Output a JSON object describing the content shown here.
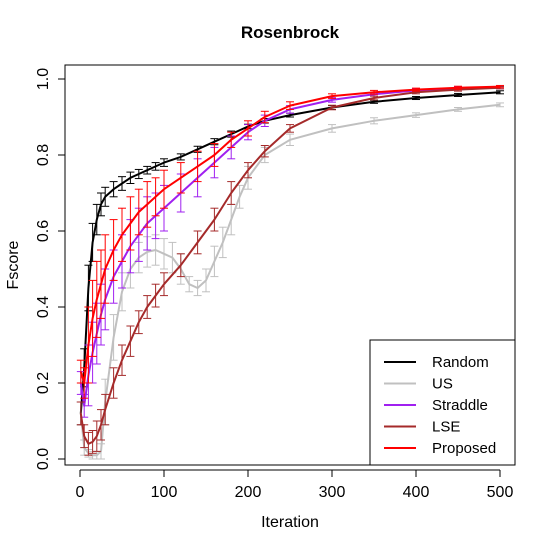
{
  "chart_data": {
    "type": "line",
    "title": "Rosenbrock",
    "xlabel": "Iteration",
    "ylabel": "Fscore",
    "xlim": [
      0,
      500
    ],
    "ylim": [
      0,
      1.0
    ],
    "xticks": [
      "0",
      "100",
      "200",
      "300",
      "400",
      "500"
    ],
    "yticks": [
      "0.0",
      "0.2",
      "0.4",
      "0.6",
      "0.8",
      "1.0"
    ],
    "legend_position": "bottom-right",
    "grid": false,
    "series": [
      {
        "name": "Random",
        "color": "#000000",
        "x": [
          1,
          5,
          10,
          15,
          20,
          25,
          30,
          40,
          50,
          60,
          70,
          80,
          90,
          100,
          120,
          140,
          160,
          180,
          200,
          220,
          250,
          300,
          350,
          400,
          450,
          500
        ],
        "y": [
          0.12,
          0.24,
          0.45,
          0.57,
          0.63,
          0.67,
          0.69,
          0.71,
          0.725,
          0.74,
          0.75,
          0.76,
          0.77,
          0.78,
          0.795,
          0.815,
          0.835,
          0.855,
          0.875,
          0.89,
          0.905,
          0.925,
          0.94,
          0.95,
          0.958,
          0.965
        ],
        "err": [
          0.03,
          0.05,
          0.06,
          0.05,
          0.04,
          0.03,
          0.025,
          0.02,
          0.018,
          0.015,
          0.012,
          0.01,
          0.01,
          0.01,
          0.008,
          0.008,
          0.008,
          0.008,
          0.006,
          0.006,
          0.005,
          0.005,
          0.004,
          0.004,
          0.004,
          0.004
        ]
      },
      {
        "name": "US",
        "color": "#c0c0c0",
        "x": [
          1,
          5,
          10,
          15,
          20,
          25,
          30,
          40,
          50,
          60,
          70,
          80,
          90,
          100,
          110,
          120,
          130,
          140,
          150,
          160,
          170,
          180,
          190,
          200,
          220,
          250,
          300,
          350,
          400,
          450,
          500
        ],
        "y": [
          0.12,
          0.03,
          0.015,
          0.01,
          0.01,
          0.02,
          0.15,
          0.32,
          0.44,
          0.5,
          0.53,
          0.545,
          0.55,
          0.54,
          0.53,
          0.5,
          0.46,
          0.45,
          0.47,
          0.52,
          0.57,
          0.63,
          0.69,
          0.74,
          0.8,
          0.84,
          0.87,
          0.89,
          0.905,
          0.92,
          0.932
        ],
        "err": [
          0.03,
          0.02,
          0.01,
          0.01,
          0.01,
          0.02,
          0.06,
          0.06,
          0.05,
          0.05,
          0.04,
          0.04,
          0.04,
          0.04,
          0.04,
          0.04,
          0.02,
          0.02,
          0.03,
          0.04,
          0.04,
          0.04,
          0.03,
          0.03,
          0.02,
          0.015,
          0.01,
          0.008,
          0.006,
          0.005,
          0.005
        ]
      },
      {
        "name": "Straddle",
        "color": "#a020f0",
        "x": [
          1,
          5,
          10,
          15,
          20,
          25,
          30,
          40,
          50,
          60,
          70,
          80,
          90,
          100,
          120,
          140,
          160,
          180,
          200,
          220,
          250,
          300,
          350,
          400,
          450,
          500
        ],
        "y": [
          0.2,
          0.14,
          0.22,
          0.28,
          0.33,
          0.38,
          0.42,
          0.48,
          0.52,
          0.56,
          0.59,
          0.62,
          0.64,
          0.66,
          0.7,
          0.74,
          0.78,
          0.82,
          0.86,
          0.89,
          0.92,
          0.945,
          0.96,
          0.97,
          0.975,
          0.977
        ],
        "err": [
          0.03,
          0.03,
          0.08,
          0.08,
          0.08,
          0.08,
          0.08,
          0.07,
          0.07,
          0.07,
          0.07,
          0.07,
          0.06,
          0.06,
          0.05,
          0.05,
          0.04,
          0.03,
          0.02,
          0.015,
          0.01,
          0.006,
          0.005,
          0.004,
          0.004,
          0.003
        ]
      },
      {
        "name": "LSE",
        "color": "#a52a2a",
        "x": [
          1,
          5,
          10,
          15,
          20,
          25,
          30,
          40,
          50,
          60,
          70,
          80,
          90,
          100,
          120,
          140,
          160,
          180,
          200,
          220,
          250,
          300,
          350,
          400,
          450,
          500
        ],
        "y": [
          0.12,
          0.06,
          0.04,
          0.045,
          0.06,
          0.09,
          0.13,
          0.2,
          0.26,
          0.31,
          0.36,
          0.4,
          0.43,
          0.46,
          0.51,
          0.57,
          0.63,
          0.7,
          0.76,
          0.81,
          0.87,
          0.925,
          0.95,
          0.965,
          0.972,
          0.977
        ],
        "err": [
          0.03,
          0.03,
          0.03,
          0.03,
          0.04,
          0.04,
          0.04,
          0.04,
          0.04,
          0.04,
          0.03,
          0.03,
          0.03,
          0.03,
          0.03,
          0.03,
          0.03,
          0.03,
          0.02,
          0.015,
          0.01,
          0.006,
          0.005,
          0.004,
          0.004,
          0.003
        ]
      },
      {
        "name": "Proposed",
        "color": "#ff0000",
        "x": [
          1,
          5,
          10,
          15,
          20,
          25,
          30,
          40,
          50,
          60,
          70,
          80,
          90,
          100,
          120,
          140,
          160,
          180,
          200,
          220,
          250,
          300,
          350,
          400,
          450,
          500
        ],
        "y": [
          0.23,
          0.2,
          0.3,
          0.37,
          0.42,
          0.46,
          0.5,
          0.55,
          0.59,
          0.62,
          0.65,
          0.67,
          0.69,
          0.71,
          0.74,
          0.77,
          0.8,
          0.84,
          0.87,
          0.9,
          0.93,
          0.955,
          0.965,
          0.972,
          0.977,
          0.98
        ],
        "err": [
          0.03,
          0.04,
          0.1,
          0.1,
          0.1,
          0.09,
          0.09,
          0.08,
          0.07,
          0.07,
          0.06,
          0.06,
          0.05,
          0.05,
          0.04,
          0.04,
          0.03,
          0.02,
          0.02,
          0.015,
          0.01,
          0.006,
          0.005,
          0.004,
          0.004,
          0.003
        ]
      }
    ]
  }
}
